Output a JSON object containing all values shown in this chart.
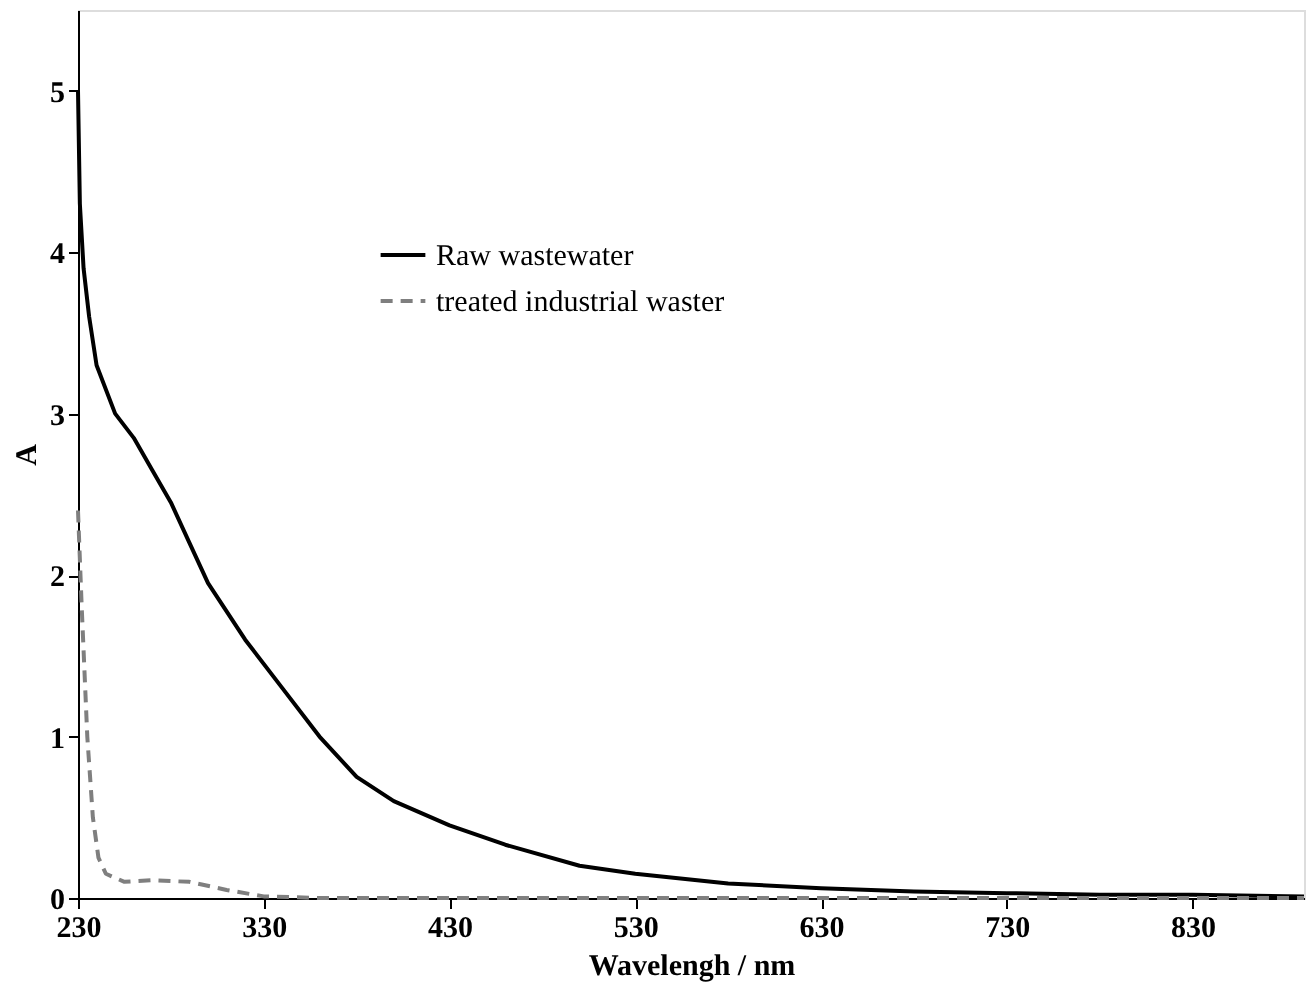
{
  "chart_data": {
    "type": "line",
    "xlabel": "Wavelengh / nm",
    "ylabel": "A",
    "xlim": [
      230,
      890
    ],
    "xticks": [
      230,
      330,
      430,
      530,
      630,
      730,
      830
    ],
    "ylim": [
      0,
      5.5
    ],
    "yticks": [
      0,
      1,
      2,
      3,
      4,
      5
    ],
    "grid": false,
    "legend": "top left",
    "series": [
      {
        "name": "Raw wastewater",
        "color": "#000000",
        "line_style": "solid",
        "x": [
          230,
          231,
          233,
          236,
          240,
          250,
          260,
          270,
          280,
          290,
          300,
          320,
          340,
          360,
          380,
          400,
          430,
          460,
          500,
          530,
          580,
          630,
          680,
          730,
          780,
          830,
          890
        ],
        "values": [
          5.0,
          4.3,
          3.9,
          3.6,
          3.3,
          3.0,
          2.85,
          2.65,
          2.45,
          2.2,
          1.95,
          1.6,
          1.3,
          1.0,
          0.75,
          0.6,
          0.45,
          0.33,
          0.2,
          0.15,
          0.09,
          0.06,
          0.04,
          0.03,
          0.02,
          0.02,
          0.01
        ]
      },
      {
        "name": "treated industrial waster",
        "color": "#7f7f7f",
        "line_style": "dashed",
        "x": [
          230,
          232,
          235,
          238,
          241,
          245,
          255,
          270,
          290,
          310,
          330,
          360,
          890
        ],
        "values": [
          2.4,
          1.8,
          1.0,
          0.5,
          0.25,
          0.15,
          0.1,
          0.11,
          0.1,
          0.05,
          0.01,
          0,
          0
        ]
      }
    ]
  }
}
